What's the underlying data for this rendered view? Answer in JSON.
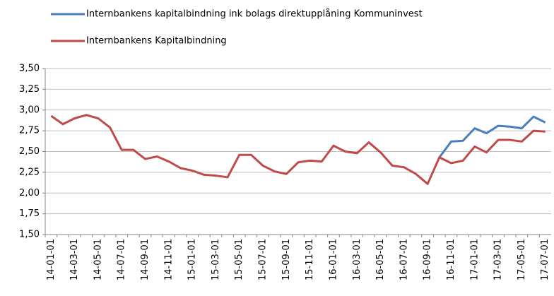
{
  "chart_data": {
    "type": "line",
    "categories": [
      "14-01-01",
      null,
      "14-03-01",
      null,
      "14-05-01",
      null,
      "14-07-01",
      null,
      "14-09-01",
      null,
      "14-11-01",
      null,
      "15-01-01",
      null,
      "15-03-01",
      null,
      "15-05-01",
      null,
      "15-07-01",
      null,
      "15-09-01",
      null,
      "15-11-01",
      null,
      "16-01-01",
      null,
      "16-03-01",
      null,
      "16-05-01",
      null,
      "16-07-01",
      null,
      "16-09-01",
      null,
      "16-11-01",
      null,
      "17-01-01",
      null,
      "17-03-01",
      null,
      "17-05-01",
      null,
      "17-07-01"
    ],
    "series": [
      {
        "name": "Internbankens kapitalbindning ink bolags direktupplåning  Kommuninvest",
        "color": "#4a7ebb",
        "values": [
          null,
          null,
          null,
          null,
          null,
          null,
          null,
          null,
          null,
          null,
          null,
          null,
          null,
          null,
          null,
          null,
          null,
          null,
          null,
          null,
          null,
          null,
          null,
          null,
          null,
          null,
          null,
          null,
          null,
          null,
          null,
          null,
          null,
          2.43,
          2.62,
          2.63,
          2.78,
          2.72,
          2.81,
          2.8,
          2.78,
          2.92,
          2.85
        ]
      },
      {
        "name": "Internbankens Kapitalbindning",
        "color": "#be4b48",
        "values": [
          2.93,
          2.83,
          2.9,
          2.94,
          2.9,
          2.79,
          2.52,
          2.52,
          2.41,
          2.44,
          2.38,
          2.3,
          2.27,
          2.22,
          2.21,
          2.19,
          2.46,
          2.46,
          2.33,
          2.26,
          2.23,
          2.37,
          2.39,
          2.38,
          2.57,
          2.5,
          2.48,
          2.61,
          2.49,
          2.33,
          2.31,
          2.23,
          2.11,
          2.43,
          2.36,
          2.39,
          2.56,
          2.49,
          2.64,
          2.64,
          2.62,
          2.75,
          2.74
        ]
      }
    ],
    "ylim": [
      1.5,
      3.5
    ],
    "yticks": [
      {
        "value": 1.5,
        "label": "1,50"
      },
      {
        "value": 1.75,
        "label": "1,75"
      },
      {
        "value": 2,
        "label": "2,00"
      },
      {
        "value": 2.25,
        "label": "2,25"
      },
      {
        "value": 2.5,
        "label": "2,50"
      },
      {
        "value": 2.75,
        "label": "2,75"
      },
      {
        "value": 3,
        "label": "3,00"
      },
      {
        "value": 3.25,
        "label": "3,25"
      },
      {
        "value": 3.5,
        "label": "3,50"
      }
    ],
    "grid": true
  }
}
